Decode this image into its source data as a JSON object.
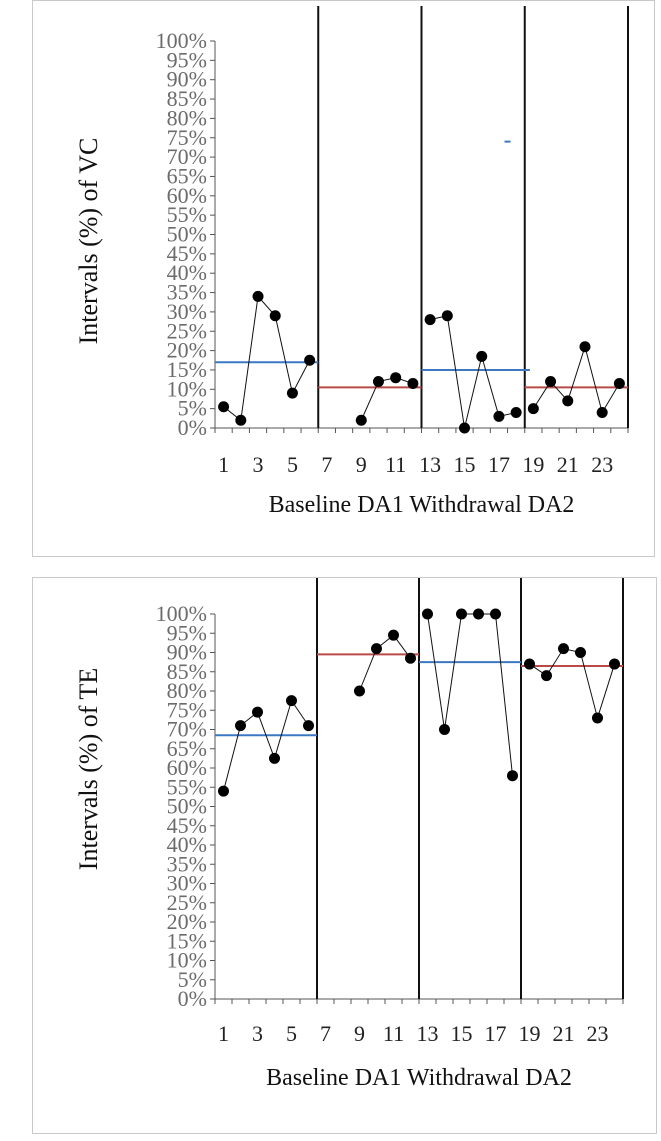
{
  "chart_data": [
    {
      "type": "line",
      "ylabel": "Intervals (%) of VC",
      "phase_label_text": "Baseline  DA1  Withdrawal   DA2",
      "xlim": [
        0.5,
        24.5
      ],
      "ylim": [
        0,
        100
      ],
      "y_tick_labels": [
        "0%",
        "5%",
        "10%",
        "15%",
        "20%",
        "25%",
        "30%",
        "35%",
        "40%",
        "45%",
        "50%",
        "55%",
        "60%",
        "65%",
        "70%",
        "75%",
        "80%",
        "85%",
        "90%",
        "95%",
        "100%"
      ],
      "x_tick_labels": [
        "1",
        "3",
        "5",
        "7",
        "9",
        "11",
        "13",
        "15",
        "17",
        "19",
        "21",
        "23"
      ],
      "phase_boundaries": [
        6.5,
        12.5,
        18.5
      ],
      "phases": [
        {
          "name": "Baseline",
          "x": [
            1,
            2,
            3,
            4,
            5,
            6
          ],
          "y": [
            5.5,
            2,
            34,
            29,
            9,
            17.5
          ]
        },
        {
          "name": "DA1",
          "x": [
            9,
            10,
            11,
            12
          ],
          "y": [
            2,
            12,
            13,
            11.5
          ]
        },
        {
          "name": "Withdrawal",
          "x": [
            13,
            14,
            15,
            16,
            17,
            18
          ],
          "y": [
            28,
            29,
            0,
            18.5,
            3,
            4
          ]
        },
        {
          "name": "DA2",
          "x": [
            19,
            20,
            21,
            22,
            23,
            24
          ],
          "y": [
            5,
            12,
            7,
            21,
            4,
            11.5
          ]
        }
      ],
      "mean_lines": [
        {
          "x": [
            0.5,
            6.5
          ],
          "y": 17,
          "color": "#3b78c4"
        },
        {
          "x": [
            6.5,
            12.5
          ],
          "y": 10.5,
          "color": "#b94a48"
        },
        {
          "x": [
            12.5,
            18.8
          ],
          "y": 15,
          "color": "#3b78c4"
        },
        {
          "x": [
            18.5,
            24.5
          ],
          "y": 10.5,
          "color": "#b94a48"
        }
      ],
      "stray_mark": {
        "x": 17.5,
        "y": 74,
        "color": "#3b78c4"
      }
    },
    {
      "type": "line",
      "ylabel": "Intervals (%) of TE",
      "phase_label_text": "Baseline DA1 Withdrawal DA2",
      "xlim": [
        0.5,
        24.5
      ],
      "ylim": [
        0,
        100
      ],
      "y_tick_labels": [
        "0%",
        "5%",
        "10%",
        "15%",
        "20%",
        "25%",
        "30%",
        "35%",
        "40%",
        "45%",
        "50%",
        "55%",
        "60%",
        "65%",
        "70%",
        "75%",
        "80%",
        "85%",
        "90%",
        "95%",
        "100%"
      ],
      "x_tick_labels": [
        "1",
        "3",
        "5",
        "7",
        "9",
        "11",
        "13",
        "15",
        "17",
        "19",
        "21",
        "23"
      ],
      "phase_boundaries": [
        6.5,
        12.5,
        18.5
      ],
      "phases": [
        {
          "name": "Baseline",
          "x": [
            1,
            2,
            3,
            4,
            5,
            6
          ],
          "y": [
            54,
            71,
            74.5,
            62.5,
            77.5,
            71
          ]
        },
        {
          "name": "DA1",
          "x": [
            9,
            10,
            11,
            12
          ],
          "y": [
            80,
            91,
            94.5,
            88.5
          ]
        },
        {
          "name": "Withdrawal",
          "x": [
            13,
            14,
            15,
            16,
            17,
            18
          ],
          "y": [
            100,
            70,
            100,
            100,
            100,
            58
          ]
        },
        {
          "name": "DA2",
          "x": [
            19,
            20,
            21,
            22,
            23,
            24
          ],
          "y": [
            87,
            84,
            91,
            90,
            73,
            87
          ]
        }
      ],
      "mean_lines": [
        {
          "x": [
            0.5,
            6.5
          ],
          "y": 68.5,
          "color": "#3b78c4"
        },
        {
          "x": [
            6.5,
            12.5
          ],
          "y": 89.5,
          "color": "#b94a48"
        },
        {
          "x": [
            12.5,
            18.5
          ],
          "y": 87.5,
          "color": "#3b78c4"
        },
        {
          "x": [
            18.5,
            24.5
          ],
          "y": 86.5,
          "color": "#b94a48"
        }
      ]
    }
  ]
}
